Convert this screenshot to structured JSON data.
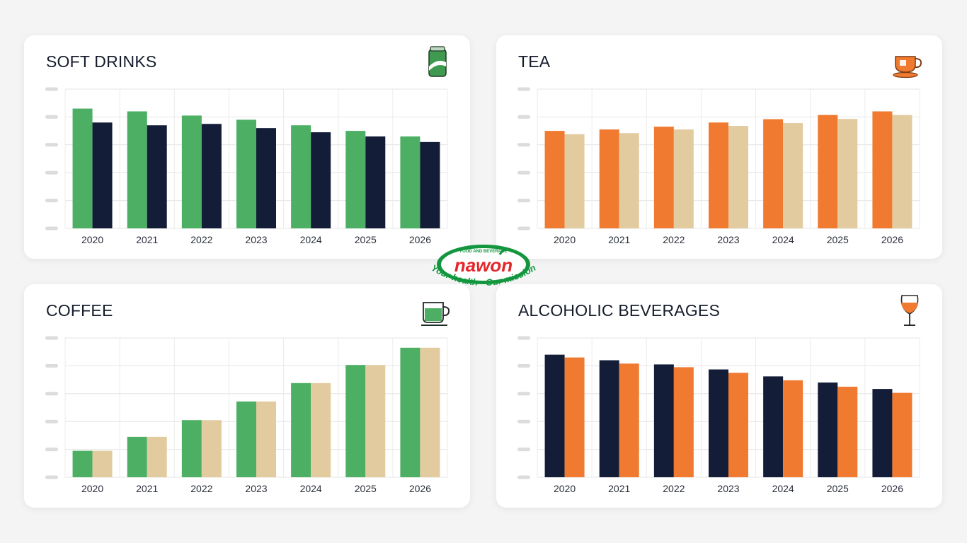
{
  "logo": {
    "brand": "nawon",
    "tagline_top": "FOOD AND BEVERAGE",
    "slogan": "Your health - Our mission",
    "colors": {
      "green": "#13963e",
      "red": "#e3262b"
    }
  },
  "chart_data": [
    {
      "type": "bar",
      "title": "SOFT DRINKS",
      "icon": "soda-can-icon",
      "categories": [
        "2020",
        "2021",
        "2022",
        "2023",
        "2024",
        "2025",
        "2026"
      ],
      "ylim": [
        0,
        5
      ],
      "y_tick_labels_visible": false,
      "grid": true,
      "series": [
        {
          "color": "#4caf63",
          "values": [
            4.3,
            4.2,
            4.05,
            3.9,
            3.7,
            3.5,
            3.3
          ]
        },
        {
          "color": "#141d38",
          "values": [
            3.8,
            3.7,
            3.75,
            3.6,
            3.45,
            3.3,
            3.1
          ]
        }
      ]
    },
    {
      "type": "bar",
      "title": "TEA",
      "icon": "teacup-icon",
      "categories": [
        "2020",
        "2021",
        "2022",
        "2023",
        "2024",
        "2025",
        "2026"
      ],
      "ylim": [
        0,
        5
      ],
      "y_tick_labels_visible": false,
      "grid": true,
      "series": [
        {
          "color": "#f07a30",
          "values": [
            3.5,
            3.55,
            3.65,
            3.8,
            3.92,
            4.07,
            4.2
          ]
        },
        {
          "color": "#e3cba0",
          "values": [
            3.38,
            3.42,
            3.55,
            3.68,
            3.78,
            3.93,
            4.07
          ]
        }
      ]
    },
    {
      "type": "bar",
      "title": "COFFEE",
      "icon": "coffee-mug-icon",
      "categories": [
        "2020",
        "2021",
        "2022",
        "2023",
        "2024",
        "2025",
        "2026"
      ],
      "ylim": [
        0,
        5
      ],
      "y_tick_labels_visible": false,
      "grid": true,
      "series": [
        {
          "color": "#4caf63",
          "values": [
            0.95,
            1.45,
            2.05,
            2.72,
            3.38,
            4.03,
            4.65
          ]
        },
        {
          "color": "#e3cba0",
          "values": [
            0.95,
            1.45,
            2.05,
            2.72,
            3.38,
            4.03,
            4.65
          ]
        }
      ]
    },
    {
      "type": "bar",
      "title": "ALCOHOLIC BEVERAGES",
      "icon": "wine-glass-icon",
      "categories": [
        "2020",
        "2021",
        "2022",
        "2023",
        "2024",
        "2025",
        "2026"
      ],
      "ylim": [
        0,
        5
      ],
      "y_tick_labels_visible": false,
      "grid": true,
      "series": [
        {
          "color": "#141d38",
          "values": [
            4.4,
            4.2,
            4.05,
            3.87,
            3.62,
            3.4,
            3.17
          ]
        },
        {
          "color": "#f07a30",
          "values": [
            4.3,
            4.08,
            3.95,
            3.75,
            3.48,
            3.25,
            3.03
          ]
        }
      ]
    }
  ]
}
